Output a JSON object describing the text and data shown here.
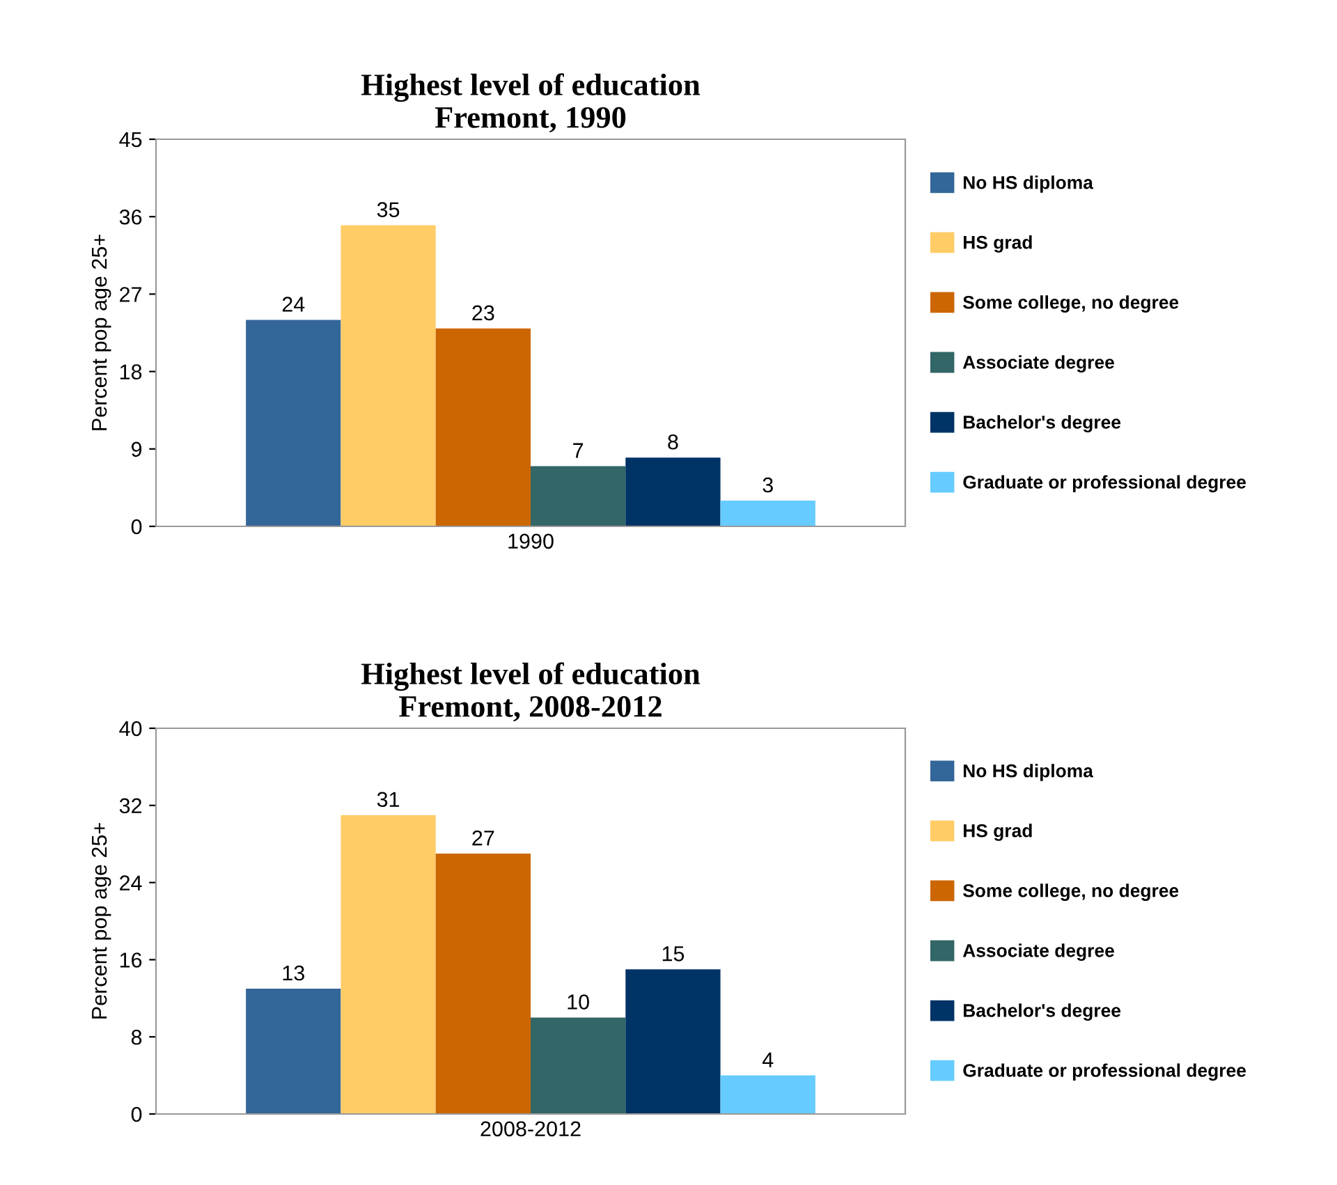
{
  "chart_data": [
    {
      "type": "bar",
      "title": "Highest level of education\nFremont, 1990",
      "ylabel": "Percent pop age 25+",
      "categories": [
        "1990"
      ],
      "ylim": [
        0,
        45
      ],
      "yticks": [
        0,
        9,
        18,
        27,
        36,
        45
      ],
      "data_labels": true,
      "legend": "right",
      "grid": false,
      "series": [
        {
          "name": "No HS diploma",
          "color": "#336699",
          "values": [
            24
          ]
        },
        {
          "name": "HS grad",
          "color": "#ffcc66",
          "values": [
            35
          ]
        },
        {
          "name": "Some college, no degree",
          "color": "#cc6600",
          "values": [
            23
          ]
        },
        {
          "name": "Associate degree",
          "color": "#336666",
          "values": [
            7
          ]
        },
        {
          "name": "Bachelor's degree",
          "color": "#003366",
          "values": [
            8
          ]
        },
        {
          "name": "Graduate or professional degree",
          "color": "#66ccff",
          "values": [
            3
          ]
        }
      ]
    },
    {
      "type": "bar",
      "title": "Highest level of education\nFremont, 2008-2012",
      "ylabel": "Percent pop age 25+",
      "categories": [
        "2008-2012"
      ],
      "ylim": [
        0,
        40
      ],
      "yticks": [
        0,
        8,
        16,
        24,
        32,
        40
      ],
      "data_labels": true,
      "legend": "right",
      "grid": false,
      "series": [
        {
          "name": "No HS diploma",
          "color": "#336699",
          "values": [
            13
          ]
        },
        {
          "name": "HS grad",
          "color": "#ffcc66",
          "values": [
            31
          ]
        },
        {
          "name": "Some college, no degree",
          "color": "#cc6600",
          "values": [
            27
          ]
        },
        {
          "name": "Associate degree",
          "color": "#336666",
          "values": [
            10
          ]
        },
        {
          "name": "Bachelor's degree",
          "color": "#003366",
          "values": [
            15
          ]
        },
        {
          "name": "Graduate or professional degree",
          "color": "#66ccff",
          "values": [
            4
          ]
        }
      ]
    }
  ]
}
